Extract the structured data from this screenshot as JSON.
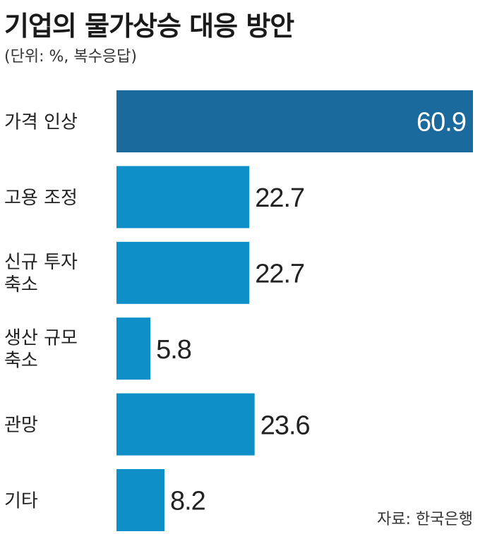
{
  "title": "기업의 물가상승 대응 방안",
  "subtitle": "(단위: %, 복수응답)",
  "source": "자료: 한국은행",
  "colors": {
    "highlight_bar": "#1a6a9e",
    "bar": "#0e8fc8",
    "label_on_bar": "#ffffff",
    "text": "#222222"
  },
  "chart_data": {
    "type": "bar",
    "orientation": "horizontal",
    "title": "기업의 물가상승 대응 방안",
    "subtitle": "(단위: %, 복수응답)",
    "categories": [
      [
        "가격 인상"
      ],
      [
        "고용 조정"
      ],
      [
        "신규 투자",
        "축소"
      ],
      [
        "생산 규모",
        "축소"
      ],
      [
        "관망"
      ],
      [
        "기타"
      ]
    ],
    "values": [
      60.9,
      22.7,
      22.7,
      5.8,
      23.6,
      8.2
    ],
    "value_labels": [
      "60.9",
      "22.7",
      "22.7",
      "5.8",
      "23.6",
      "8.2"
    ],
    "highlight_index": 0,
    "xlim": [
      0,
      60.9
    ],
    "grid": false,
    "legend": "none"
  }
}
